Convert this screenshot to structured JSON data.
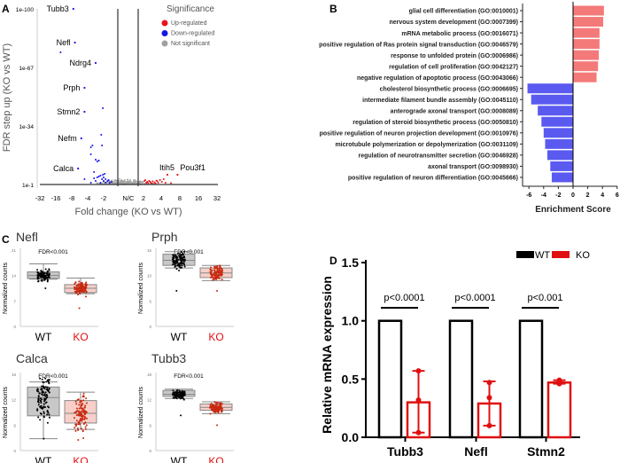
{
  "panel_labels": {
    "a": "A",
    "b": "B",
    "c": "C",
    "d": "D"
  },
  "colors": {
    "up": "#e8141b",
    "down": "#1414e6",
    "ns": "#a0a0a0",
    "go_up": "#f47a7a",
    "go_down": "#5a5af0",
    "ko": "#e01010",
    "wt": "#000000",
    "ko_box": "#f9cfc9",
    "ko_pt": "#c82a10",
    "wt_box": "#c8c8c8"
  },
  "chart_data": [
    {
      "id": "volcano",
      "type": "scatter",
      "xlabel": "Fold change (KO vs WT)",
      "ylabel": "FDR step up (KO vs WT)",
      "x_ticks": [
        "-32",
        "-16",
        "-8",
        "-4",
        "-2",
        "N/C",
        "2",
        "4",
        "8",
        "16",
        "32"
      ],
      "y_ticks": [
        "1e-100",
        "1e-67",
        "1e-34",
        "1e-1"
      ],
      "legend": {
        "title": "Significance",
        "position": "top-right",
        "items": [
          "Up-regulated",
          "Down-regulated",
          "Not significant"
        ]
      },
      "labeled_genes": [
        {
          "gene": "Tubb3",
          "log2fc": -2.9,
          "neglog10fdr": 100
        },
        {
          "gene": "Nefl",
          "log2fc": -2.8,
          "neglog10fdr": 81
        },
        {
          "gene": "Ndrg4",
          "log2fc": -1.5,
          "neglog10fdr": 69.5
        },
        {
          "gene": "Prph",
          "log2fc": -2.2,
          "neglog10fdr": 55.5
        },
        {
          "gene": "Stmn2",
          "log2fc": -2.2,
          "neglog10fdr": 42
        },
        {
          "gene": "Nefm",
          "log2fc": -2.4,
          "neglog10fdr": 27
        },
        {
          "gene": "Calca",
          "log2fc": -2.6,
          "neglog10fdr": 10
        },
        {
          "gene": "Itih5",
          "log2fc": 2.3,
          "neglog10fdr": 6.5
        },
        {
          "gene": "Pou3f1",
          "log2fc": 2.85,
          "neglog10fdr": 6.5
        }
      ],
      "down_points": [
        [
          -3.7,
          75.5
        ],
        [
          -1.05,
          44
        ],
        [
          -1.15,
          29
        ],
        [
          -1.1,
          23
        ],
        [
          -1.7,
          23
        ],
        [
          -1.8,
          22
        ],
        [
          -1.8,
          18
        ],
        [
          -1.5,
          15
        ],
        [
          -1.4,
          14
        ],
        [
          -1.3,
          14.5
        ],
        [
          -1.6,
          8
        ],
        [
          -1.2,
          6
        ],
        [
          -1.3,
          5.5
        ],
        [
          -1.0,
          5
        ],
        [
          -1.1,
          4
        ],
        [
          -0.9,
          4
        ],
        [
          -1.0,
          3
        ],
        [
          -0.8,
          3
        ],
        [
          -0.6,
          2.5
        ],
        [
          -0.7,
          2
        ],
        [
          -1.5,
          3
        ],
        [
          -1.8,
          2
        ],
        [
          -2.2,
          4
        ],
        [
          -1.2,
          2
        ],
        [
          -0.9,
          2.2
        ],
        [
          -0.75,
          3.5
        ],
        [
          -1.4,
          5
        ],
        [
          -1.05,
          6.5
        ],
        [
          -0.95,
          7
        ],
        [
          -1.6,
          4.5
        ]
      ],
      "up_points": [
        [
          1.05,
          3
        ],
        [
          1.1,
          3.5
        ],
        [
          1.2,
          2.5
        ],
        [
          1.3,
          3
        ],
        [
          1.4,
          2
        ],
        [
          1.5,
          2.8
        ],
        [
          1.6,
          2.2
        ],
        [
          1.7,
          3.2
        ],
        [
          1.8,
          2
        ],
        [
          1.9,
          3.5
        ],
        [
          2.0,
          2.5
        ],
        [
          2.1,
          4
        ],
        [
          1.15,
          2
        ],
        [
          1.25,
          1.8
        ],
        [
          1.35,
          2.6
        ],
        [
          1.45,
          1.6
        ],
        [
          2.2,
          2
        ],
        [
          1.65,
          1.7
        ],
        [
          1.75,
          2.9
        ],
        [
          2.5,
          1.8
        ]
      ]
    },
    {
      "id": "go_enrichment",
      "type": "bar",
      "orientation": "horizontal",
      "xlabel": "Enrichment Score",
      "xlim": [
        -6,
        6
      ],
      "x_ticks": [
        "-6",
        "-4",
        "-2",
        "0",
        "2",
        "4",
        "6"
      ],
      "categories": [
        "glial cell differentiation (GO:0010001)",
        "nervous system development (GO:0007399)",
        "mRNA metabolic process (GO:0016071)",
        "positive regulation of Ras protein signal transduction (GO:0046579)",
        "response to unfolded protein (GO:0006986)",
        "regulation of cell proliferation (GO:0042127)",
        "negative regulation of apoptotic process (GO:0043066)",
        "cholesterol biosynthetic process (GO:0006695)",
        "intermediate filament bundle assembly (GO:0045110)",
        "anterograde axonal transport (GO:0008089)",
        "regulation of steroid biosynthetic process (GO:0050810)",
        "positive regulation of neuron projection development (GO:0010976)",
        "microtubule polymerization or depolymerization (GO:0031109)",
        "regulation of neurotransmitter secretion (GO:0046928)",
        "axonal transport (GO:0098930)",
        "positive regulation of neuron differentiation (GO:0045666)"
      ],
      "values": [
        4.2,
        4.1,
        3.6,
        3.6,
        3.5,
        3.4,
        3.2,
        -6.2,
        -5.7,
        -4.8,
        -4.3,
        -4.0,
        -3.8,
        -3.5,
        -3.1,
        -2.9
      ]
    },
    {
      "id": "boxplots",
      "type": "box",
      "ylabel": "Normalized counts",
      "groups": [
        "WT",
        "KO"
      ],
      "panels": [
        {
          "gene": "Nefl",
          "annotation": "FDR<0.001",
          "ylim": [
            0,
            21
          ],
          "y_ticks": [
            "21",
            "14",
            "7",
            "0"
          ],
          "WT": {
            "whisker_low": 13,
            "q1": 13.2,
            "median": 14,
            "q3": 15,
            "whisker_high": 17.2,
            "min": 10.5,
            "max": 18
          },
          "KO": {
            "whisker_low": 9,
            "q1": 9.3,
            "median": 10.5,
            "q3": 11.5,
            "whisker_high": 13.3,
            "min": 5,
            "max": 13.5
          }
        },
        {
          "gene": "Prph",
          "annotation": "FDR<0.001",
          "ylim": [
            0,
            15
          ],
          "y_ticks": [
            "15",
            "10",
            "5",
            "0"
          ],
          "WT": {
            "whisker_low": 11.5,
            "q1": 12,
            "median": 13,
            "q3": 14.2,
            "whisker_high": 14.7,
            "min": 7,
            "max": 14.8
          },
          "KO": {
            "whisker_low": 9,
            "q1": 9.6,
            "median": 10.5,
            "q3": 11.5,
            "whisker_high": 12,
            "min": 7,
            "max": 12.5
          }
        },
        {
          "gene": "Calca",
          "annotation": "FDR<0.001",
          "ylim": [
            0,
            18
          ],
          "y_ticks": [
            "18",
            "12",
            "6",
            "0"
          ],
          "WT": {
            "whisker_low": 2.8,
            "q1": 8.2,
            "median": 12.5,
            "q3": 15,
            "whisker_high": 16.2,
            "min": 2.8,
            "max": 17
          },
          "KO": {
            "whisker_low": 5,
            "q1": 6.5,
            "median": 8.8,
            "q3": 11.8,
            "whisker_high": 13.8,
            "min": 2.5,
            "max": 15.3
          }
        },
        {
          "gene": "Tubb3",
          "annotation": "FDR<0.001",
          "ylim": [
            0,
            18
          ],
          "y_ticks": [
            "18",
            "12",
            "6",
            "0"
          ],
          "WT": {
            "whisker_low": 12.3,
            "q1": 12.8,
            "median": 13.3,
            "q3": 14.2,
            "whisker_high": 14.5,
            "min": 8.3,
            "max": 15
          },
          "KO": {
            "whisker_low": 8.7,
            "q1": 9.5,
            "median": 10.2,
            "q3": 11,
            "whisker_high": 11.5,
            "min": 6,
            "max": 12.5
          }
        }
      ]
    },
    {
      "id": "qpcr",
      "type": "bar",
      "ylabel": "Relative mRNA expression",
      "ylim": [
        0,
        1.5
      ],
      "y_ticks": [
        "1.5",
        "1.0",
        "0.5",
        "0.0"
      ],
      "legend": {
        "position": "top-right",
        "items": [
          "WT",
          "KO"
        ]
      },
      "categories": [
        "Tubb3",
        "Nefl",
        "Stmn2"
      ],
      "series": [
        {
          "name": "WT",
          "values": [
            1.0,
            1.0,
            1.0
          ]
        },
        {
          "name": "KO",
          "values": [
            0.3,
            0.29,
            0.47
          ],
          "points": [
            [
              0.57,
              0.32,
              0.04
            ],
            [
              0.47,
              0.34,
              0.1
            ],
            [
              0.46,
              0.49,
              0.48
            ]
          ],
          "err_low": [
            0.04,
            0.1,
            0.46
          ],
          "err_high": [
            0.57,
            0.48,
            0.49
          ]
        }
      ],
      "p_values": [
        "p<0.0001",
        "p<0.0001",
        "p<0.001"
      ]
    }
  ]
}
